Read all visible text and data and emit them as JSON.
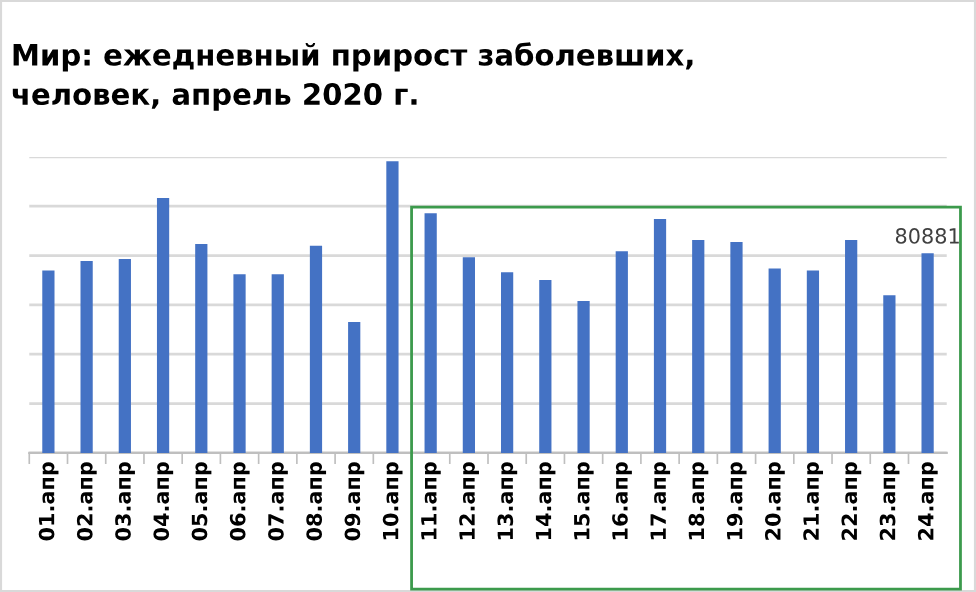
{
  "chart_data": {
    "type": "bar",
    "title": "Мир: ежедневный прирост заболевших,\nчеловек, апрель 2020 г.",
    "categories": [
      "01.апр",
      "02.апр",
      "03.апр",
      "04.апр",
      "05.апр",
      "06.апр",
      "07.апр",
      "08.апр",
      "09.апр",
      "10.апр",
      "11.апр",
      "12.апр",
      "13.апр",
      "14.апр",
      "15.апр",
      "16.апр",
      "17.апр",
      "18.апр",
      "19.апр",
      "20.апр",
      "21.апр",
      "22.апр",
      "23.апр",
      "24.апр"
    ],
    "values": [
      73900,
      77800,
      78600,
      103300,
      84700,
      72400,
      72400,
      84000,
      53100,
      118200,
      97100,
      79300,
      73200,
      70100,
      61600,
      81700,
      94800,
      86300,
      85500,
      74700,
      73900,
      86300,
      63900,
      80881
    ],
    "value_labels": [
      null,
      null,
      null,
      null,
      null,
      null,
      null,
      null,
      null,
      null,
      null,
      null,
      null,
      null,
      null,
      null,
      null,
      null,
      null,
      null,
      null,
      null,
      null,
      "80881"
    ],
    "color": "#4472c4",
    "grid": "y",
    "tick_labels": "x",
    "ylim": [
      0,
      120000
    ],
    "yticks": [
      {
        "value": 0,
        "label": null
      },
      {
        "value": 20000,
        "label": null
      },
      {
        "value": 40000,
        "label": null
      },
      {
        "value": 60000,
        "label": null
      },
      {
        "value": 80000,
        "label": null
      },
      {
        "value": 100000,
        "label": null
      },
      {
        "value": 120000,
        "label": null
      }
    ]
  }
}
